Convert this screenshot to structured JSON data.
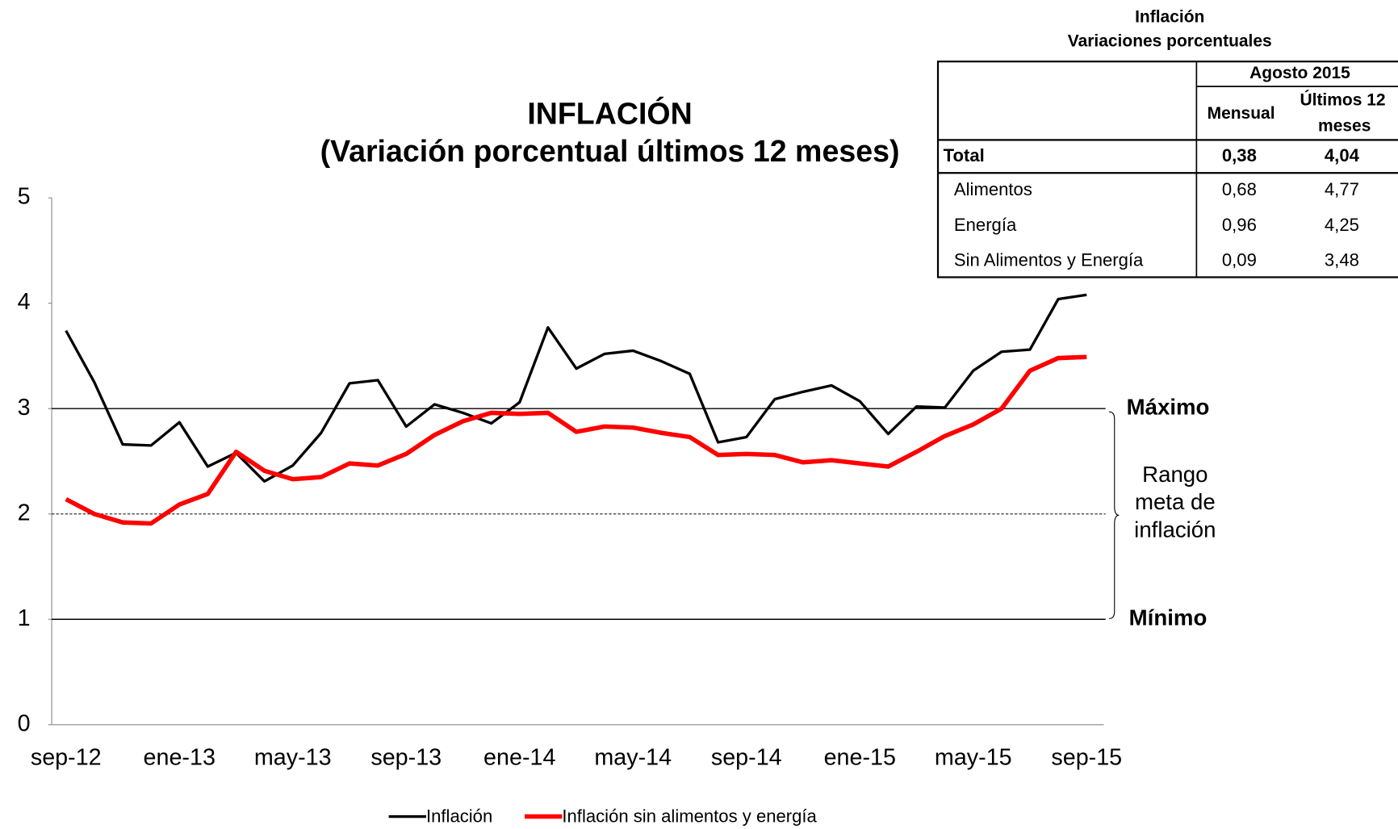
{
  "chart_data": {
    "type": "line",
    "title": "INFLACIÓN",
    "subtitle": "(Variación porcentual últimos 12 meses)",
    "categories": [
      "sep-12",
      null,
      null,
      null,
      "ene-13",
      null,
      null,
      null,
      "may-13",
      null,
      null,
      null,
      "sep-13",
      null,
      null,
      null,
      "ene-14",
      null,
      null,
      null,
      "may-14",
      null,
      null,
      null,
      "sep-14",
      null,
      null,
      null,
      "ene-15",
      null,
      null,
      null,
      "may-15",
      null,
      null,
      null,
      "sep-15"
    ],
    "series": [
      {
        "name": "Inflación",
        "color": "#000000",
        "values": [
          3.74,
          3.25,
          2.66,
          2.65,
          2.87,
          2.45,
          2.58,
          2.31,
          2.46,
          2.77,
          3.24,
          3.27,
          2.83,
          3.04,
          2.96,
          2.86,
          3.06,
          3.77,
          3.38,
          3.52,
          3.55,
          3.45,
          3.33,
          2.68,
          2.73,
          3.09,
          3.16,
          3.22,
          3.07,
          2.76,
          3.02,
          3.01,
          3.36,
          3.54,
          3.56,
          4.04,
          4.08
        ]
      },
      {
        "name": "Inflación sin alimentos y energía",
        "color": "#ff0000",
        "values": [
          2.14,
          2.0,
          1.92,
          1.91,
          2.09,
          2.19,
          2.59,
          2.41,
          2.33,
          2.35,
          2.48,
          2.46,
          2.57,
          2.75,
          2.88,
          2.96,
          2.95,
          2.96,
          2.78,
          2.83,
          2.82,
          2.77,
          2.73,
          2.56,
          2.57,
          2.56,
          2.49,
          2.51,
          2.48,
          2.45,
          2.59,
          2.74,
          2.85,
          3.0,
          3.36,
          3.48,
          3.49
        ]
      }
    ],
    "ylim": [
      0,
      5
    ],
    "yticks": [
      0,
      1,
      2,
      3,
      4,
      5
    ],
    "reference_lines": [
      {
        "value": 3,
        "label": "Máximo",
        "style": "solid"
      },
      {
        "value": 2,
        "style": "dashed"
      },
      {
        "value": 1,
        "label": "Mínimo",
        "style": "solid"
      }
    ],
    "range_label": [
      "Rango",
      "meta de",
      "inflación"
    ],
    "legend": "bottom"
  },
  "table": {
    "title": [
      "Inflación",
      "Variaciones porcentuales"
    ],
    "period": "Agosto 2015",
    "columns": [
      "Mensual",
      [
        "Últimos 12",
        "meses"
      ]
    ],
    "rows": [
      [
        "Total",
        "0,38",
        "4,04"
      ],
      [
        "Alimentos",
        "0,68",
        "4,77"
      ],
      [
        "Energía",
        "0,96",
        "4,25"
      ],
      [
        "Sin Alimentos y Energía",
        "0,09",
        "3,48"
      ]
    ]
  }
}
